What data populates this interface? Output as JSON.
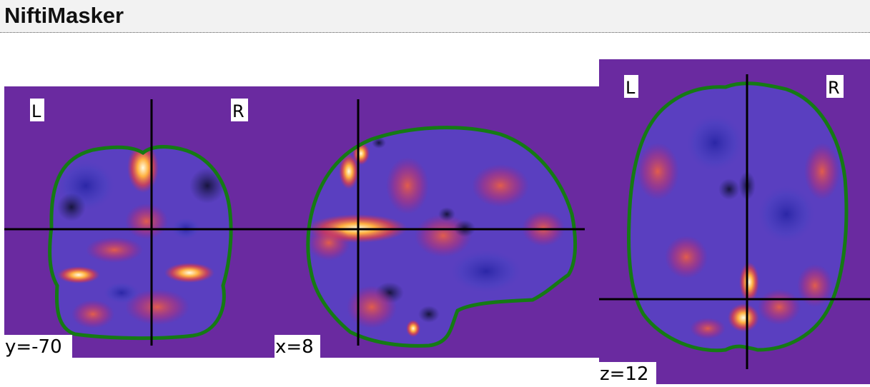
{
  "header": {
    "title": "NiftiMasker"
  },
  "colors": {
    "background": "#6a2aa0",
    "mask": "#157a14",
    "crosshair": "#000000"
  },
  "views": {
    "coronal": {
      "coord": "y=-70",
      "left": "L",
      "right": "R"
    },
    "sagittal": {
      "coord": "x=8"
    },
    "axial": {
      "coord": "z=12",
      "left": "L",
      "right": "R"
    }
  }
}
